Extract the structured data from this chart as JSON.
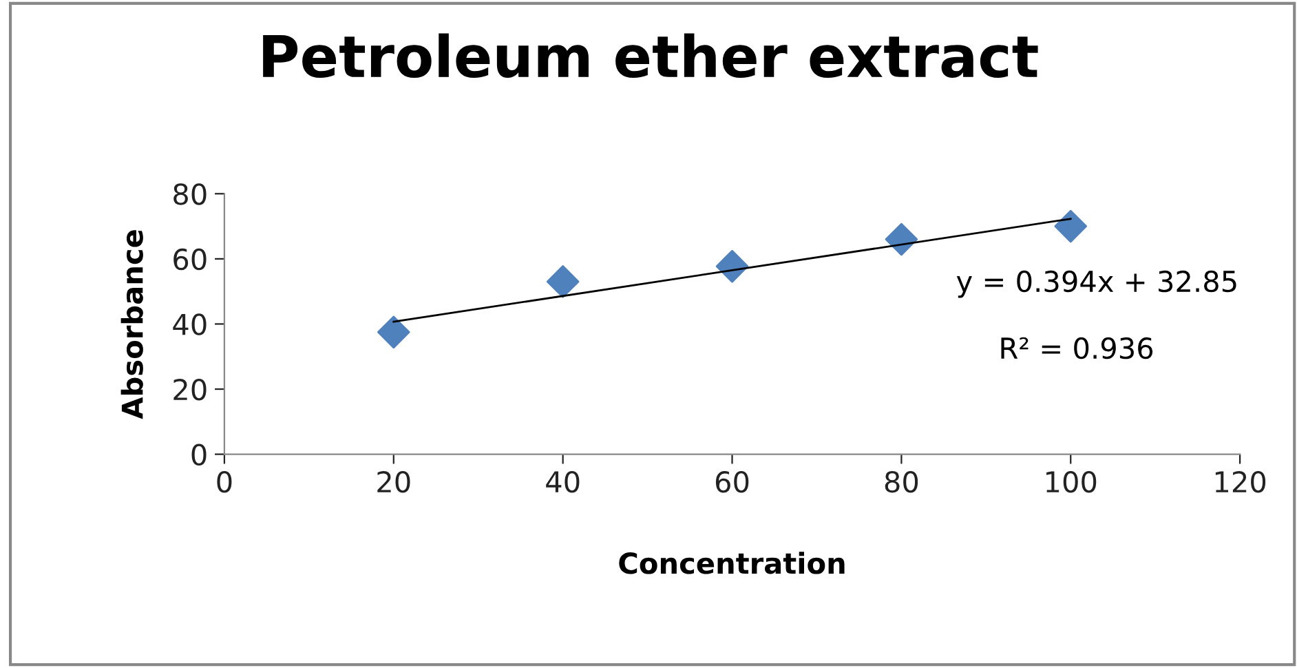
{
  "chart_data": {
    "type": "scatter",
    "title": "Petroleum ether extract",
    "xlabel": "Concentration",
    "ylabel": "Absorbance",
    "xlim": [
      0,
      120
    ],
    "xticks": [
      0,
      20,
      40,
      60,
      80,
      100,
      120
    ],
    "ylim": [
      0,
      80
    ],
    "yticks": [
      0,
      20,
      40,
      60,
      80
    ],
    "series": [
      {
        "color": "#4f81bd",
        "marker": "diamond",
        "x": [
          20,
          40,
          60,
          80,
          100
        ],
        "values": [
          37.5,
          53,
          57.7,
          66,
          70
        ]
      },
      {
        "type": "line",
        "color": "#000000",
        "marker": "none",
        "line_style": "solid",
        "x": [
          20,
          100
        ],
        "values": [
          40.7,
          72.3
        ]
      }
    ],
    "annotations": [
      "y = 0.394x + 32.85",
      "R² = 0.936"
    ],
    "grid": false,
    "legend": false
  }
}
